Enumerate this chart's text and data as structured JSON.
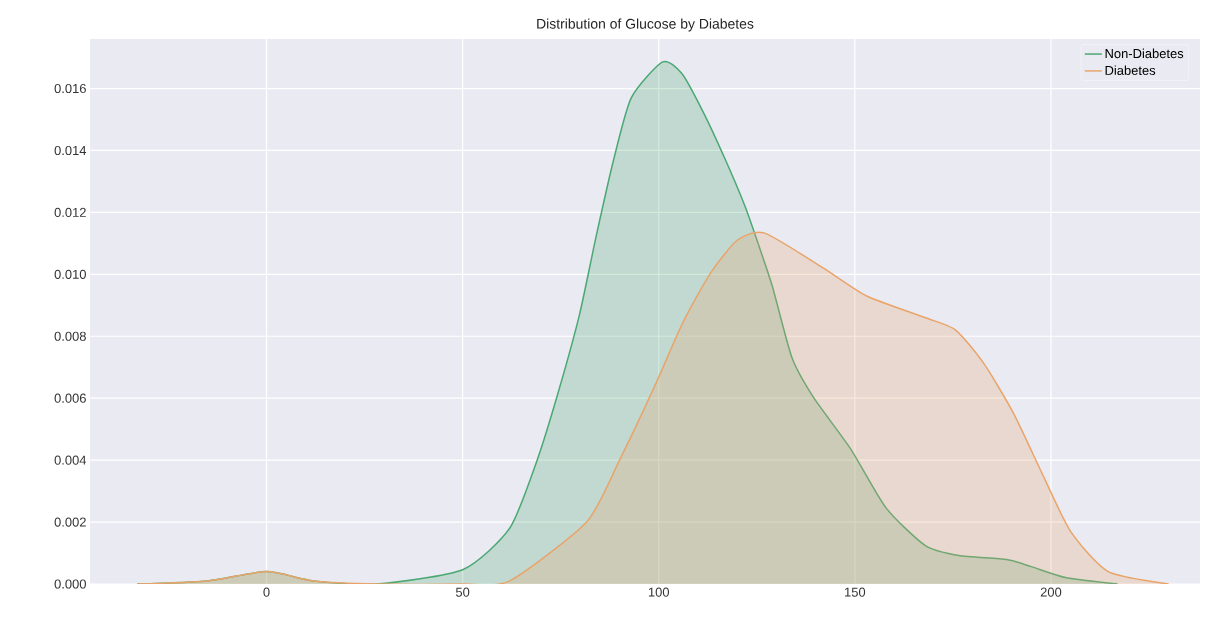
{
  "chart_data": {
    "type": "area",
    "title": "Distribution of Glucose by Diabetes",
    "series": [
      {
        "name": "Non-Diabetes",
        "color": "#4aa873",
        "x": [
          -33,
          -15,
          0,
          12,
          28,
          50,
          62,
          69,
          74.4,
          79.8,
          84,
          88.5,
          93,
          101,
          106,
          111.5,
          117,
          122,
          125.6,
          129,
          134,
          139.6,
          149,
          158,
          168,
          176.5,
          188.7,
          195,
          204,
          217
        ],
        "values": [
          0,
          0.0001,
          0.0004,
          0.0001,
          0,
          0.00046,
          0.0018,
          0.004,
          0.0062,
          0.0087,
          0.0112,
          0.0137,
          0.0157,
          0.01686,
          0.01647,
          0.0152,
          0.0137,
          0.0122,
          0.0109,
          0.0096,
          0.0073,
          0.006,
          0.00435,
          0.00245,
          0.00124,
          0.00092,
          0.00079,
          0.00056,
          0.0002,
          0
        ]
      },
      {
        "name": "Diabetes",
        "color": "#e9a46a",
        "x": [
          -33,
          -15,
          0,
          12,
          28,
          50,
          62,
          81.6,
          90,
          99,
          106,
          113,
          120,
          127,
          142,
          153,
          168,
          175.7,
          183,
          190.5,
          198,
          205,
          214.6,
          230
        ],
        "values": [
          0,
          0.0001,
          0.0004,
          0.0001,
          0,
          0,
          0.0001,
          0.002,
          0.004,
          0.0064,
          0.0084,
          0.01,
          0.0111,
          0.01133,
          0.0102,
          0.0093,
          0.0086,
          0.0082,
          0.0071,
          0.0055,
          0.0035,
          0.0017,
          0.0004,
          0
        ]
      }
    ],
    "xlim": [
      -45,
      238
    ],
    "ylim": [
      0,
      0.0176
    ],
    "xticks": [
      0,
      50,
      100,
      150,
      200
    ],
    "yticks": [
      {
        "value": 0,
        "label": "0.000"
      },
      {
        "value": 0.002,
        "label": "0.002"
      },
      {
        "value": 0.004,
        "label": "0.004"
      },
      {
        "value": 0.006,
        "label": "0.006"
      },
      {
        "value": 0.008,
        "label": "0.008"
      },
      {
        "value": 0.01,
        "label": "0.010"
      },
      {
        "value": 0.012,
        "label": "0.012"
      },
      {
        "value": 0.014,
        "label": "0.014"
      },
      {
        "value": 0.016,
        "label": "0.016"
      }
    ],
    "grid": true,
    "legend": "top right"
  }
}
